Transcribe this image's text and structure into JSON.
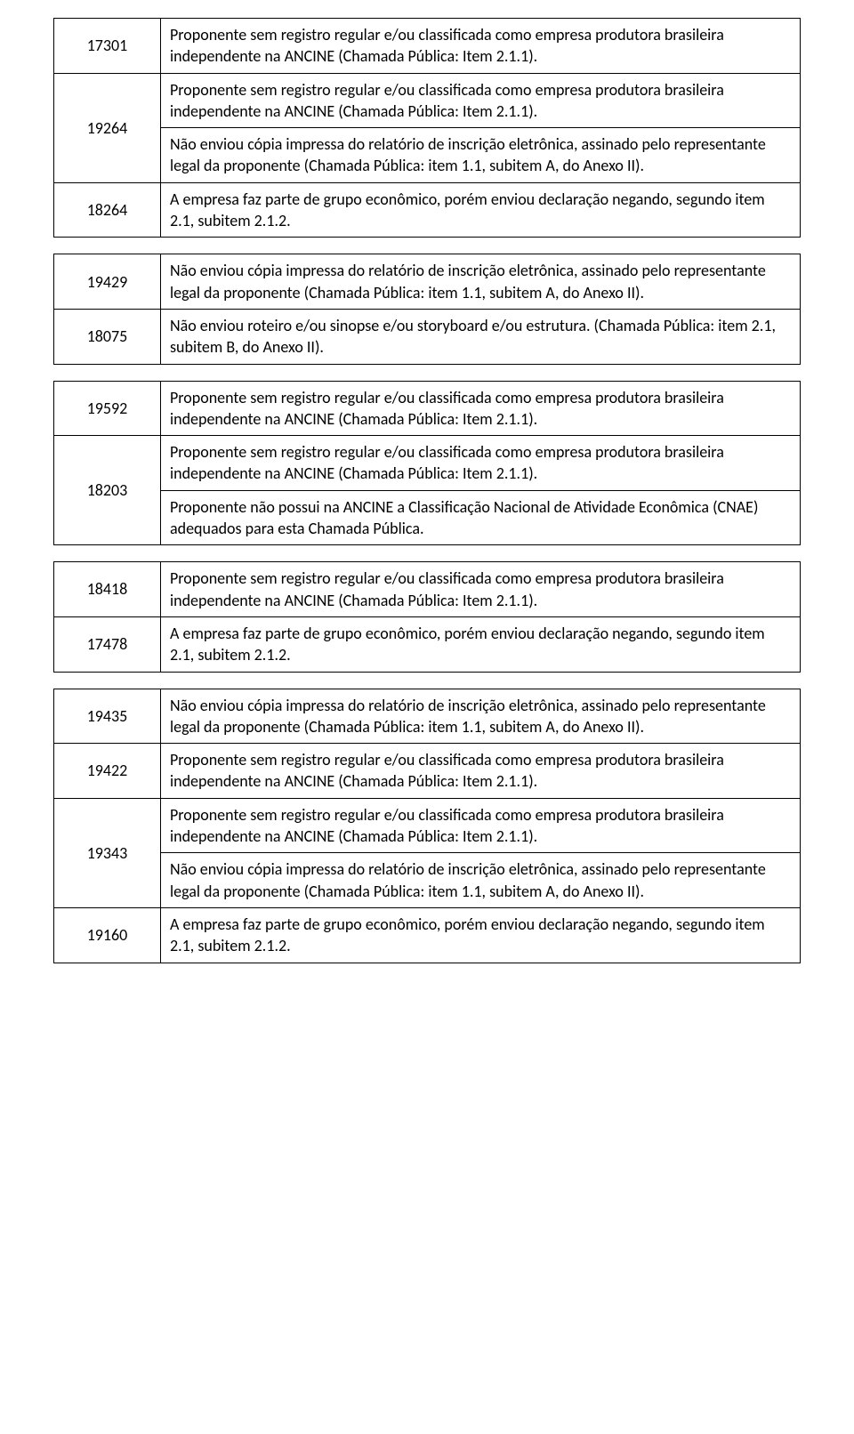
{
  "tables": [
    {
      "rows": [
        {
          "code": "17301",
          "descs": [
            "Proponente sem registro regular e/ou classificada como empresa produtora brasileira independente na ANCINE (Chamada Pública: Item 2.1.1)."
          ]
        },
        {
          "code": "19264",
          "descs": [
            "Proponente sem registro regular e/ou classificada como empresa produtora brasileira independente na ANCINE (Chamada Pública: Item 2.1.1).",
            "Não enviou cópia impressa do relatório de inscrição eletrônica, assinado pelo representante legal da proponente (Chamada Pública: item 1.1, subitem A, do Anexo II)."
          ]
        },
        {
          "code": "18264",
          "descs": [
            "A empresa faz parte de grupo econômico, porém enviou declaração negando, segundo item 2.1, subitem 2.1.2."
          ]
        }
      ]
    },
    {
      "rows": [
        {
          "code": "19429",
          "descs": [
            "Não enviou cópia impressa do relatório de inscrição eletrônica, assinado pelo representante legal da proponente (Chamada Pública: item 1.1, subitem A, do Anexo II)."
          ]
        },
        {
          "code": "18075",
          "descs": [
            "Não enviou roteiro e/ou sinopse e/ou storyboard e/ou estrutura. (Chamada Pública: item 2.1, subitem B, do Anexo II)."
          ]
        }
      ]
    },
    {
      "rows": [
        {
          "code": "19592",
          "descs": [
            "Proponente sem registro regular e/ou classificada como empresa produtora brasileira independente na ANCINE (Chamada Pública: Item 2.1.1)."
          ]
        },
        {
          "code": "18203",
          "descs": [
            "Proponente sem registro regular e/ou classificada como empresa produtora brasileira independente na ANCINE (Chamada Pública: Item 2.1.1).",
            "Proponente não possui na ANCINE a Classificação Nacional de Atividade Econômica (CNAE) adequados para esta Chamada Pública."
          ]
        }
      ]
    },
    {
      "rows": [
        {
          "code": "18418",
          "descs": [
            "Proponente sem registro regular e/ou classificada como empresa produtora brasileira independente na ANCINE (Chamada Pública: Item 2.1.1)."
          ]
        },
        {
          "code": "17478",
          "descs": [
            "A empresa faz parte de grupo econômico, porém enviou declaração negando, segundo item 2.1, subitem 2.1.2."
          ]
        }
      ]
    },
    {
      "rows": [
        {
          "code": "19435",
          "descs": [
            "Não enviou cópia impressa do relatório de inscrição eletrônica, assinado pelo representante legal da proponente (Chamada Pública: item 1.1, subitem A, do Anexo II)."
          ]
        },
        {
          "code": "19422",
          "descs": [
            "Proponente sem registro regular e/ou classificada como empresa produtora brasileira independente na ANCINE (Chamada Pública: Item 2.1.1)."
          ]
        },
        {
          "code": "19343",
          "descs": [
            "Proponente sem registro regular e/ou classificada como empresa produtora brasileira independente na ANCINE (Chamada Pública: Item 2.1.1).",
            "Não enviou cópia impressa do relatório de inscrição eletrônica, assinado pelo representante legal da proponente (Chamada Pública: item 1.1, subitem A, do Anexo II)."
          ]
        },
        {
          "code": "19160",
          "descs": [
            "A empresa faz parte de grupo econômico, porém enviou declaração negando, segundo item 2.1, subitem 2.1.2."
          ]
        }
      ]
    }
  ]
}
